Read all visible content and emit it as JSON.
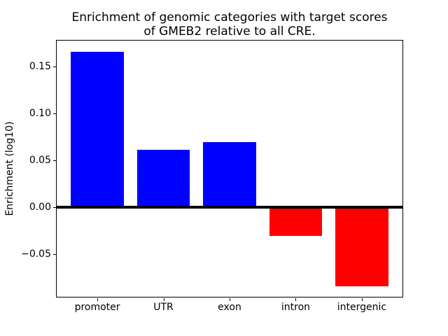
{
  "title_lines": [
    "Enrichment of genomic categories with target scores",
    "of GMEB2 relative to all CRE."
  ],
  "chart_data": {
    "type": "bar",
    "title": "Enrichment of genomic categories with target scores of GMEB2 relative to all CRE.",
    "xlabel": "",
    "ylabel": "Enrichment (log10)",
    "categories": [
      "promoter",
      "UTR",
      "exon",
      "intron",
      "intergenic"
    ],
    "values": [
      0.166,
      0.061,
      0.069,
      -0.031,
      -0.085
    ],
    "positive_color": "#0000ff",
    "negative_color": "#ff0000",
    "ylim": [
      -0.0966,
      0.1784
    ],
    "xlim": [
      -0.625,
      4.625
    ],
    "bar_width_fraction": 0.8,
    "yticks": [
      {
        "value": 0.15,
        "label": "0.15"
      },
      {
        "value": 0.1,
        "label": "0.10"
      },
      {
        "value": 0.05,
        "label": "0.05"
      },
      {
        "value": 0.0,
        "label": "0.00"
      },
      {
        "value": -0.05,
        "label": "−0.05"
      }
    ],
    "zero_line": true,
    "grid": false,
    "legend": false
  }
}
